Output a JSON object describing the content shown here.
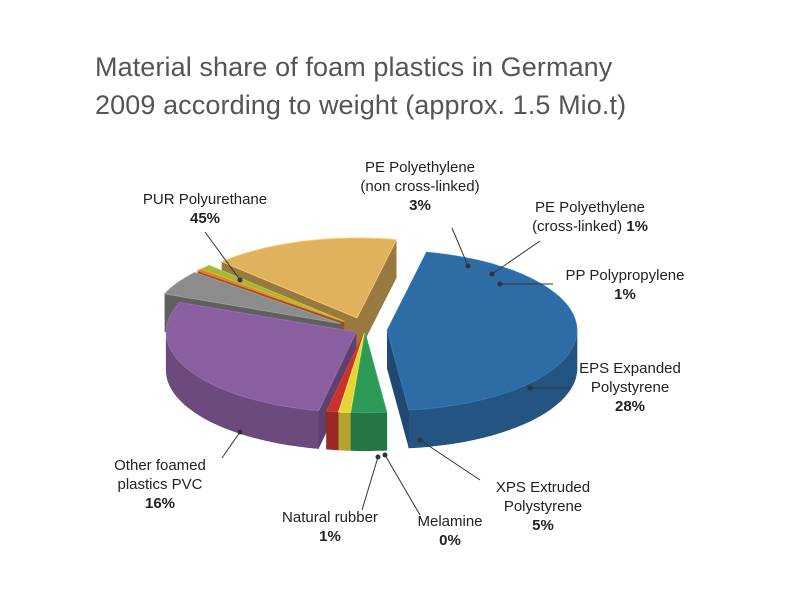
{
  "chart_data": {
    "type": "pie",
    "title_lines": [
      "Material share of foam plastics in Germany",
      "2009 according to weight (approx. 1.5 Mio.t)"
    ],
    "unit": "%",
    "slices": [
      {
        "key": "pur",
        "name_lines": [
          "PUR Polyurethane"
        ],
        "value": 45,
        "value_label": "45%",
        "color": "#2e6ca6"
      },
      {
        "key": "pe_nc",
        "name_lines": [
          "PE Polyethylene",
          "(non cross-linked)"
        ],
        "value": 3,
        "value_label": "3%",
        "color": "#2e9a58"
      },
      {
        "key": "pe_cl",
        "name_lines": [
          "PE Polyethylene",
          "(cross-linked)"
        ],
        "value": 1,
        "value_label": "1%",
        "color": "#e6d43a"
      },
      {
        "key": "pp",
        "name_lines": [
          "PP Polypropylene"
        ],
        "value": 1,
        "value_label": "1%",
        "color": "#c8332e"
      },
      {
        "key": "eps",
        "name_lines": [
          "EPS Expanded",
          "Polystyrene"
        ],
        "value": 28,
        "value_label": "28%",
        "color": "#8a5fa0"
      },
      {
        "key": "xps",
        "name_lines": [
          "XPS Extruded",
          "Polystyrene"
        ],
        "value": 5,
        "value_label": "5%",
        "color": "#8c8c8c"
      },
      {
        "key": "melamine",
        "name_lines": [
          "Melamine"
        ],
        "value": 0,
        "value_label": "0%",
        "color": "#e0782c"
      },
      {
        "key": "rubber",
        "name_lines": [
          "Natural rubber"
        ],
        "value": 1,
        "value_label": "1%",
        "color": "#a4b63c"
      },
      {
        "key": "pvc",
        "name_lines": [
          "Other foamed",
          "plastics PVC"
        ],
        "value": 16,
        "value_label": "16%",
        "color": "#e0b25e"
      }
    ],
    "exploded": true,
    "three_d": true
  }
}
